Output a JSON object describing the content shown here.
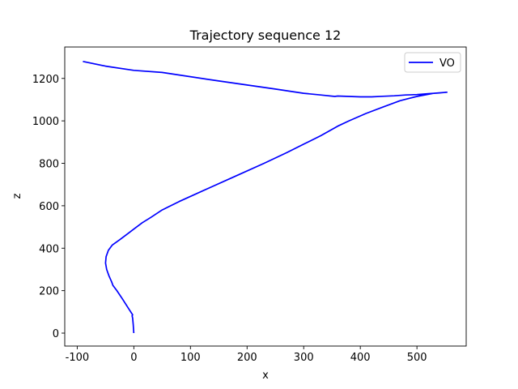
{
  "chart_data": {
    "type": "line",
    "title": "Trajectory sequence 12",
    "xlabel": "x",
    "ylabel": "z",
    "xlim": [
      -122,
      587
    ],
    "ylim": [
      -61,
      1348
    ],
    "xticks": [
      -100,
      0,
      100,
      200,
      300,
      400,
      500
    ],
    "yticks": [
      0,
      200,
      400,
      600,
      800,
      1000,
      1200
    ],
    "grid": false,
    "legend_position": "top-right",
    "colors": {
      "series": "#0000ff",
      "axes": "#000000",
      "background": "#ffffff"
    },
    "series": [
      {
        "name": "VO",
        "color": "#0000ff",
        "points": [
          [
            0,
            0
          ],
          [
            -1,
            40
          ],
          [
            -2,
            70
          ],
          [
            -3,
            82
          ],
          [
            -2,
            86
          ],
          [
            -8,
            110
          ],
          [
            -20,
            160
          ],
          [
            -30,
            200
          ],
          [
            -37,
            225
          ],
          [
            -39,
            240
          ],
          [
            -44,
            270
          ],
          [
            -48,
            300
          ],
          [
            -50,
            330
          ],
          [
            -49,
            360
          ],
          [
            -45,
            390
          ],
          [
            -38,
            415
          ],
          [
            -25,
            440
          ],
          [
            -10,
            470
          ],
          [
            0,
            490
          ],
          [
            15,
            520
          ],
          [
            30,
            545
          ],
          [
            50,
            580
          ],
          [
            80,
            620
          ],
          [
            130,
            680
          ],
          [
            180,
            740
          ],
          [
            230,
            800
          ],
          [
            270,
            850
          ],
          [
            300,
            890
          ],
          [
            330,
            930
          ],
          [
            360,
            975
          ],
          [
            380,
            1000
          ],
          [
            410,
            1035
          ],
          [
            440,
            1065
          ],
          [
            470,
            1095
          ],
          [
            500,
            1115
          ],
          [
            530,
            1130
          ],
          [
            553,
            1135
          ],
          [
            540,
            1132
          ],
          [
            520,
            1128
          ],
          [
            500,
            1124
          ],
          [
            480,
            1122
          ],
          [
            460,
            1118
          ],
          [
            440,
            1116
          ],
          [
            420,
            1113
          ],
          [
            400,
            1113
          ],
          [
            380,
            1115
          ],
          [
            360,
            1117
          ],
          [
            355,
            1115
          ],
          [
            330,
            1122
          ],
          [
            300,
            1130
          ],
          [
            250,
            1150
          ],
          [
            150,
            1188
          ],
          [
            50,
            1228
          ],
          [
            0,
            1238
          ],
          [
            -50,
            1258
          ],
          [
            -90,
            1280
          ]
        ]
      }
    ]
  }
}
